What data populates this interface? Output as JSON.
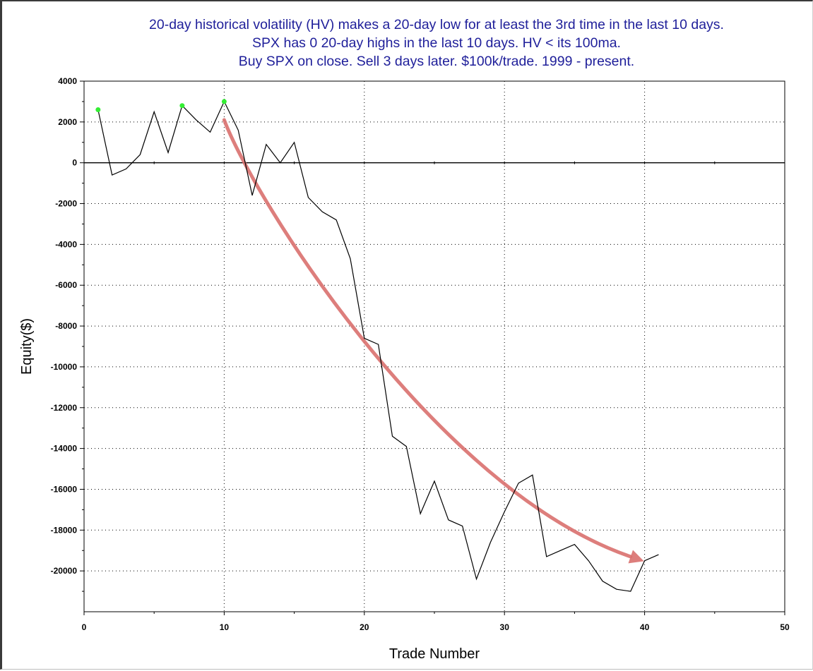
{
  "chart_data": {
    "type": "line",
    "title_lines": [
      "20-day historical volatility (HV) makes a 20-day low for at least the 3rd time in the last 10 days.",
      "SPX has 0 20-day highs in the last 10 days. HV < its 100ma.",
      "Buy SPX on close. Sell 3 days later. $100k/trade. 1999 - present."
    ],
    "xlabel": "Trade Number",
    "ylabel": "Equity($)",
    "xlim": [
      0,
      50
    ],
    "ylim": [
      -22000,
      4000
    ],
    "x_ticks": [
      0,
      10,
      20,
      30,
      40,
      50
    ],
    "y_ticks": [
      4000,
      2000,
      0,
      -2000,
      -4000,
      -6000,
      -8000,
      -10000,
      -12000,
      -14000,
      -16000,
      -18000,
      -20000
    ],
    "grid": "dotted",
    "series": [
      {
        "x": [
          1,
          2,
          3,
          4,
          5,
          6,
          7,
          8,
          9,
          10,
          11,
          12,
          13,
          14,
          15,
          16,
          17,
          18,
          19,
          20,
          21,
          22,
          23,
          24,
          25,
          26,
          27,
          28,
          29,
          30,
          31,
          32,
          33,
          34,
          35,
          36,
          37,
          38,
          39,
          40,
          41
        ],
        "values": [
          2600,
          -600,
          -300,
          400,
          2500,
          500,
          2800,
          2100,
          1500,
          3000,
          1600,
          -1600,
          900,
          0,
          1000,
          -1700,
          -2400,
          -2800,
          -4700,
          -8600,
          -8900,
          -13400,
          -13900,
          -17200,
          -15600,
          -17500,
          -17800,
          -20400,
          -18600,
          -17100,
          -15700,
          -15300,
          -19300,
          -19000,
          -18700,
          -19500,
          -20500,
          -20900,
          -21000,
          -19500,
          -19200
        ]
      }
    ],
    "new_high_markers": [
      {
        "x": 1,
        "y": 2600
      },
      {
        "x": 7,
        "y": 2800
      },
      {
        "x": 10,
        "y": 3000
      }
    ],
    "colors": {
      "title": "#1f1f9a",
      "line": "#000000",
      "marker": "#33ee33",
      "arrow": "#d9706e",
      "grid": "#000000"
    }
  }
}
